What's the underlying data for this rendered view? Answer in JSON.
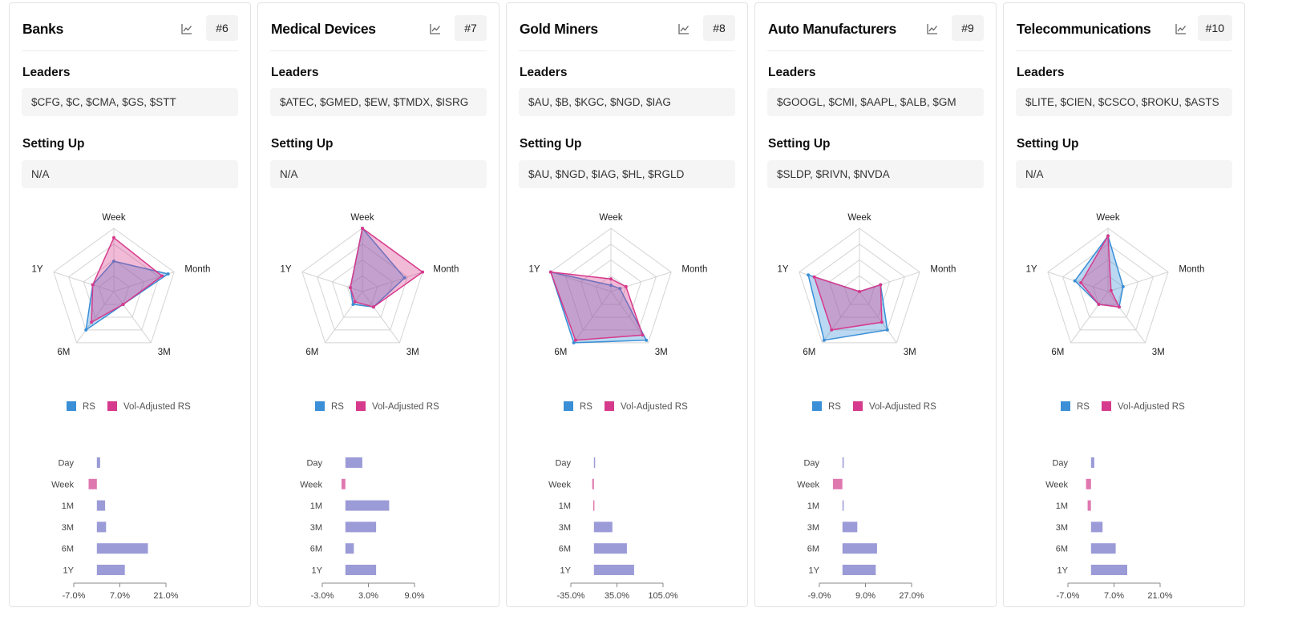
{
  "colors": {
    "rs": "#3a8fd6",
    "vol_adjusted_rs": "#d63a8c",
    "bar_positive": "#9b9bd8",
    "bar_negative": "#e078b0",
    "grid": "#d4d4d4",
    "axis": "#888888"
  },
  "icons": {
    "chart": "line-chart-icon"
  },
  "labels": {
    "leaders": "Leaders",
    "setting_up": "Setting Up"
  },
  "cards": [
    {
      "title": "Banks",
      "rank": "#6",
      "leaders": "$CFG, $C, $CMA, $GS, $STT",
      "setting_up": "N/A"
    },
    {
      "title": "Medical Devices",
      "rank": "#7",
      "leaders": "$ATEC, $GMED, $EW, $TMDX, $ISRG",
      "setting_up": "N/A"
    },
    {
      "title": "Gold Miners",
      "rank": "#8",
      "leaders": "$AU, $B, $KGC, $NGD, $IAG",
      "setting_up": "$AU, $NGD, $IAG, $HL, $RGLD"
    },
    {
      "title": "Auto Manufacturers",
      "rank": "#9",
      "leaders": "$GOOGL, $CMI, $AAPL, $ALB, $GM",
      "setting_up": "$SLDP, $RIVN, $NVDA"
    },
    {
      "title": "Telecommunications",
      "rank": "#10",
      "leaders": "$LITE, $CIEN, $CSCO, $ROKU, $ASTS",
      "setting_up": "N/A"
    }
  ],
  "chart_data": [
    {
      "type": "radar",
      "card": "Banks",
      "axes": [
        "Week",
        "Month",
        "3M",
        "6M",
        "1Y"
      ],
      "max": 100,
      "grid_levels": 4,
      "legend": [
        "RS",
        "Vol-Adjusted RS"
      ],
      "series": [
        {
          "name": "RS",
          "values": [
            48,
            90,
            25,
            75,
            35
          ]
        },
        {
          "name": "Vol-Adjusted RS",
          "values": [
            85,
            80,
            25,
            60,
            35
          ]
        }
      ]
    },
    {
      "type": "bar",
      "orientation": "horizontal",
      "card": "Banks",
      "categories": [
        "Day",
        "Week",
        "1M",
        "3M",
        "6M",
        "1Y"
      ],
      "values": [
        1.0,
        -2.5,
        2.5,
        2.8,
        15.5,
        8.5
      ],
      "ticks": [
        "-7.0%",
        "7.0%",
        "21.0%"
      ],
      "tick_values": [
        -7,
        7,
        21
      ],
      "xlim": [
        -7,
        21
      ]
    },
    {
      "type": "radar",
      "card": "Medical Devices",
      "axes": [
        "Week",
        "Month",
        "3M",
        "6M",
        "1Y"
      ],
      "max": 100,
      "grid_levels": 4,
      "legend": [
        "RS",
        "Vol-Adjusted RS"
      ],
      "series": [
        {
          "name": "RS",
          "values": [
            100,
            70,
            30,
            25,
            20
          ]
        },
        {
          "name": "Vol-Adjusted RS",
          "values": [
            100,
            100,
            30,
            20,
            20
          ]
        }
      ]
    },
    {
      "type": "bar",
      "orientation": "horizontal",
      "card": "Medical Devices",
      "categories": [
        "Day",
        "Week",
        "1M",
        "3M",
        "6M",
        "1Y"
      ],
      "values": [
        2.2,
        -0.5,
        5.7,
        4.0,
        1.1,
        4.0
      ],
      "ticks": [
        "-3.0%",
        "3.0%",
        "9.0%"
      ],
      "tick_values": [
        -3,
        3,
        9
      ],
      "xlim": [
        -3,
        9
      ]
    },
    {
      "type": "radar",
      "card": "Gold Miners",
      "axes": [
        "Week",
        "Month",
        "3M",
        "6M",
        "1Y"
      ],
      "max": 100,
      "grid_levels": 4,
      "legend": [
        "RS",
        "Vol-Adjusted RS"
      ],
      "series": [
        {
          "name": "RS",
          "values": [
            10,
            15,
            95,
            100,
            100
          ]
        },
        {
          "name": "Vol-Adjusted RS",
          "values": [
            20,
            25,
            85,
            95,
            100
          ]
        }
      ]
    },
    {
      "type": "bar",
      "orientation": "horizontal",
      "card": "Gold Miners",
      "categories": [
        "Day",
        "Week",
        "1M",
        "3M",
        "6M",
        "1Y"
      ],
      "values": [
        0.5,
        -2.5,
        -1.0,
        28,
        50,
        61
      ],
      "ticks": [
        "-35.0%",
        "35.0%",
        "105.0%"
      ],
      "tick_values": [
        -35,
        35,
        105
      ],
      "xlim": [
        -35,
        105
      ]
    },
    {
      "type": "radar",
      "card": "Auto Manufacturers",
      "axes": [
        "Week",
        "Month",
        "3M",
        "6M",
        "1Y"
      ],
      "max": 100,
      "grid_levels": 4,
      "legend": [
        "RS",
        "Vol-Adjusted RS"
      ],
      "series": [
        {
          "name": "RS",
          "values": [
            0,
            35,
            75,
            95,
            85
          ]
        },
        {
          "name": "Vol-Adjusted RS",
          "values": [
            0,
            35,
            60,
            75,
            75
          ]
        }
      ]
    },
    {
      "type": "bar",
      "orientation": "horizontal",
      "card": "Auto Manufacturers",
      "categories": [
        "Day",
        "Week",
        "1M",
        "3M",
        "6M",
        "1Y"
      ],
      "values": [
        0.5,
        -3.7,
        0.3,
        5.8,
        13.5,
        13.0
      ],
      "ticks": [
        "-9.0%",
        "9.0%",
        "27.0%"
      ],
      "tick_values": [
        -9,
        9,
        27
      ],
      "xlim": [
        -9,
        27
      ]
    },
    {
      "type": "radar",
      "card": "Telecommunications",
      "axes": [
        "Week",
        "Month",
        "3M",
        "6M",
        "1Y"
      ],
      "max": 100,
      "grid_levels": 4,
      "legend": [
        "RS",
        "Vol-Adjusted RS"
      ],
      "series": [
        {
          "name": "RS",
          "values": [
            88,
            25,
            30,
            25,
            55
          ]
        },
        {
          "name": "Vol-Adjusted RS",
          "values": [
            88,
            5,
            30,
            25,
            45
          ]
        }
      ]
    },
    {
      "type": "bar",
      "orientation": "horizontal",
      "card": "Telecommunications",
      "categories": [
        "Day",
        "Week",
        "1M",
        "3M",
        "6M",
        "1Y"
      ],
      "values": [
        1.0,
        -1.5,
        -1.0,
        3.5,
        7.5,
        11.0
      ],
      "ticks": [
        "-7.0%",
        "7.0%",
        "21.0%"
      ],
      "tick_values": [
        -7,
        7,
        21
      ],
      "xlim": [
        -7,
        21
      ]
    }
  ]
}
